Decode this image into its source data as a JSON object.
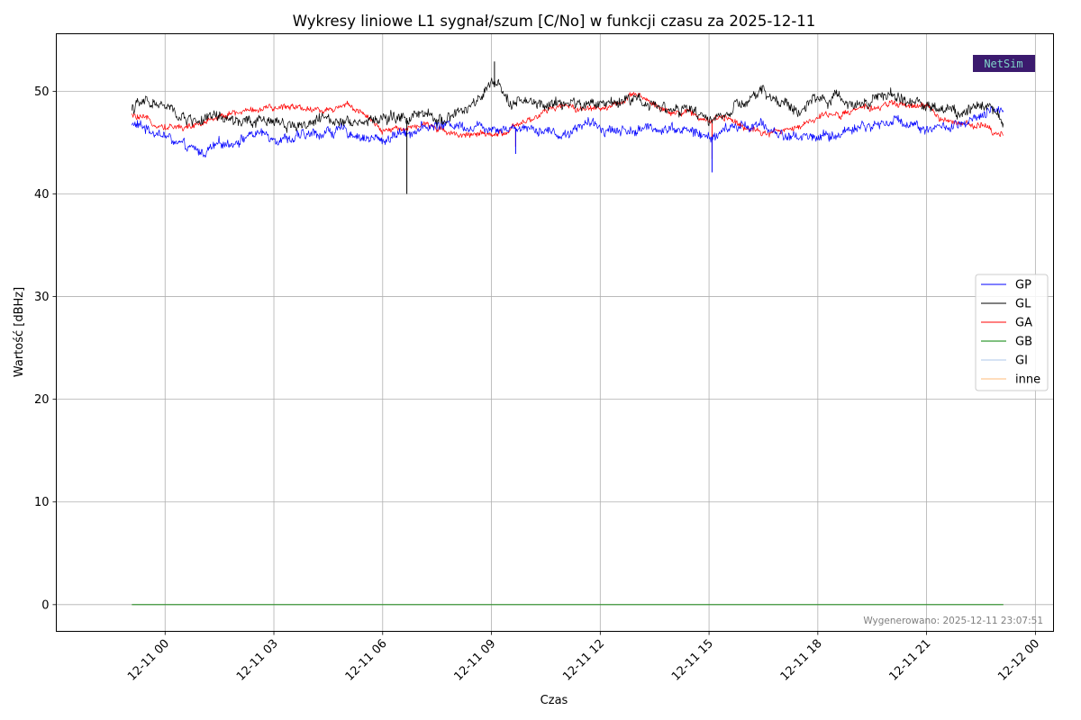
{
  "chart_data": {
    "type": "line",
    "title": "Wykresy liniowe L1 sygnał/szum [C/No] w funkcji czasu za 2025-12-11",
    "xlabel": "Czas",
    "ylabel": "Wartość [dBHz]",
    "ylim": [
      -2.6,
      55.6
    ],
    "yticks": [
      0,
      10,
      20,
      30,
      40,
      50
    ],
    "xlim": [
      "2025-12-10 21:00",
      "2025-12-12 00:30"
    ],
    "xticks": [
      {
        "t": "2025-12-11 00:00",
        "label": "12-11 00"
      },
      {
        "t": "2025-12-11 03:00",
        "label": "12-11 03"
      },
      {
        "t": "2025-12-11 06:00",
        "label": "12-11 06"
      },
      {
        "t": "2025-12-11 09:00",
        "label": "12-11 09"
      },
      {
        "t": "2025-12-11 12:00",
        "label": "12-11 12"
      },
      {
        "t": "2025-12-11 15:00",
        "label": "12-11 15"
      },
      {
        "t": "2025-12-11 18:00",
        "label": "12-11 18"
      },
      {
        "t": "2025-12-11 21:00",
        "label": "12-11 21"
      },
      {
        "t": "2025-12-12 00:00",
        "label": "12-12 00"
      }
    ],
    "x_start": "2025-12-10 23:05",
    "x_end": "2025-12-11 23:07",
    "grid": true,
    "legend_position": "right",
    "series": [
      {
        "name": "GP",
        "color": "#0000ff",
        "noise": 0.7,
        "spikes": [
          {
            "t": "2025-12-11 15:05",
            "v": 42.1
          },
          {
            "t": "2025-12-11 09:40",
            "v": 43.9
          }
        ],
        "points": [
          [
            "2025-12-10 23:05",
            46.8
          ],
          [
            "2025-12-10 23:35",
            46.3
          ],
          [
            "2025-12-11 00:05",
            45.5
          ],
          [
            "2025-12-11 00:30",
            44.5
          ],
          [
            "2025-12-11 01:00",
            44.0
          ],
          [
            "2025-12-11 01:30",
            44.7
          ],
          [
            "2025-12-11 02:00",
            45.3
          ],
          [
            "2025-12-11 02:30",
            45.9
          ],
          [
            "2025-12-11 03:00",
            45.6
          ],
          [
            "2025-12-11 03:30",
            45.4
          ],
          [
            "2025-12-11 04:00",
            45.7
          ],
          [
            "2025-12-11 04:30",
            46.1
          ],
          [
            "2025-12-11 05:00",
            46.1
          ],
          [
            "2025-12-11 05:30",
            45.5
          ],
          [
            "2025-12-11 06:00",
            45.2
          ],
          [
            "2025-12-11 06:30",
            46.0
          ],
          [
            "2025-12-11 07:00",
            46.3
          ],
          [
            "2025-12-11 07:30",
            46.7
          ],
          [
            "2025-12-11 08:00",
            46.8
          ],
          [
            "2025-12-11 08:30",
            46.6
          ],
          [
            "2025-12-11 09:00",
            46.6
          ],
          [
            "2025-12-11 09:30",
            46.4
          ],
          [
            "2025-12-11 10:00",
            46.6
          ],
          [
            "2025-12-11 10:30",
            46.2
          ],
          [
            "2025-12-11 11:00",
            45.7
          ],
          [
            "2025-12-11 11:30",
            46.9
          ],
          [
            "2025-12-11 12:00",
            46.5
          ],
          [
            "2025-12-11 12:30",
            46.2
          ],
          [
            "2025-12-11 13:00",
            46.2
          ],
          [
            "2025-12-11 13:30",
            46.4
          ],
          [
            "2025-12-11 14:00",
            46.5
          ],
          [
            "2025-12-11 14:30",
            46.1
          ],
          [
            "2025-12-11 15:00",
            45.4
          ],
          [
            "2025-12-11 15:30",
            46.3
          ],
          [
            "2025-12-11 16:00",
            46.7
          ],
          [
            "2025-12-11 16:30",
            46.6
          ],
          [
            "2025-12-11 17:00",
            45.7
          ],
          [
            "2025-12-11 17:30",
            45.6
          ],
          [
            "2025-12-11 18:00",
            45.6
          ],
          [
            "2025-12-11 18:30",
            45.6
          ],
          [
            "2025-12-11 19:00",
            46.6
          ],
          [
            "2025-12-11 19:30",
            46.6
          ],
          [
            "2025-12-11 20:00",
            47.1
          ],
          [
            "2025-12-11 20:30",
            47.0
          ],
          [
            "2025-12-11 21:00",
            46.4
          ],
          [
            "2025-12-11 21:30",
            46.5
          ],
          [
            "2025-12-11 22:00",
            46.6
          ],
          [
            "2025-12-11 22:30",
            47.4
          ],
          [
            "2025-12-11 23:07",
            48.5
          ]
        ]
      },
      {
        "name": "GL",
        "color": "#000000",
        "noise": 0.8,
        "spikes": [
          {
            "t": "2025-12-11 06:40",
            "v": 40.0
          },
          {
            "t": "2025-12-11 09:05",
            "v": 52.9
          }
        ],
        "points": [
          [
            "2025-12-10 23:05",
            48.4
          ],
          [
            "2025-12-10 23:35",
            49.0
          ],
          [
            "2025-12-11 00:05",
            48.3
          ],
          [
            "2025-12-11 00:30",
            47.3
          ],
          [
            "2025-12-11 01:00",
            47.2
          ],
          [
            "2025-12-11 01:30",
            47.3
          ],
          [
            "2025-12-11 02:00",
            47.0
          ],
          [
            "2025-12-11 02:30",
            46.8
          ],
          [
            "2025-12-11 03:00",
            47.3
          ],
          [
            "2025-12-11 03:30",
            46.7
          ],
          [
            "2025-12-11 04:00",
            46.9
          ],
          [
            "2025-12-11 04:30",
            47.3
          ],
          [
            "2025-12-11 05:00",
            47.4
          ],
          [
            "2025-12-11 05:30",
            47.0
          ],
          [
            "2025-12-11 06:00",
            47.4
          ],
          [
            "2025-12-11 06:30",
            47.3
          ],
          [
            "2025-12-11 07:00",
            47.6
          ],
          [
            "2025-12-11 07:30",
            47.2
          ],
          [
            "2025-12-11 08:00",
            47.8
          ],
          [
            "2025-12-11 08:30",
            48.5
          ],
          [
            "2025-12-11 09:00",
            50.6
          ],
          [
            "2025-12-11 09:30",
            49.3
          ],
          [
            "2025-12-11 10:00",
            48.8
          ],
          [
            "2025-12-11 10:30",
            48.5
          ],
          [
            "2025-12-11 11:00",
            48.9
          ],
          [
            "2025-12-11 11:30",
            48.6
          ],
          [
            "2025-12-11 12:00",
            48.8
          ],
          [
            "2025-12-11 12:30",
            49.1
          ],
          [
            "2025-12-11 13:00",
            49.4
          ],
          [
            "2025-12-11 13:30",
            48.7
          ],
          [
            "2025-12-11 14:00",
            48.3
          ],
          [
            "2025-12-11 14:30",
            47.9
          ],
          [
            "2025-12-11 15:00",
            47.3
          ],
          [
            "2025-12-11 15:30",
            47.8
          ],
          [
            "2025-12-11 16:00",
            48.8
          ],
          [
            "2025-12-11 16:30",
            49.9
          ],
          [
            "2025-12-11 17:00",
            48.8
          ],
          [
            "2025-12-11 17:30",
            48.1
          ],
          [
            "2025-12-11 18:00",
            49.3
          ],
          [
            "2025-12-11 18:30",
            49.2
          ],
          [
            "2025-12-11 19:00",
            48.9
          ],
          [
            "2025-12-11 19:30",
            49.4
          ],
          [
            "2025-12-11 20:00",
            49.5
          ],
          [
            "2025-12-11 20:30",
            49.1
          ],
          [
            "2025-12-11 21:00",
            48.6
          ],
          [
            "2025-12-11 21:30",
            48.2
          ],
          [
            "2025-12-11 22:00",
            48.0
          ],
          [
            "2025-12-11 22:30",
            49.2
          ],
          [
            "2025-12-11 23:07",
            47.0
          ]
        ]
      },
      {
        "name": "GA",
        "color": "#ff0000",
        "noise": 0.45,
        "spikes": [
          {
            "t": "2025-12-11 15:05",
            "v": 43.4
          },
          {
            "t": "2025-12-11 09:40",
            "v": 44.6
          }
        ],
        "points": [
          [
            "2025-12-10 23:05",
            47.6
          ],
          [
            "2025-12-10 23:35",
            47.0
          ],
          [
            "2025-12-11 00:05",
            46.6
          ],
          [
            "2025-12-11 00:30",
            46.5
          ],
          [
            "2025-12-11 01:00",
            46.7
          ],
          [
            "2025-12-11 01:30",
            47.7
          ],
          [
            "2025-12-11 02:00",
            47.9
          ],
          [
            "2025-12-11 02:30",
            48.3
          ],
          [
            "2025-12-11 03:00",
            48.2
          ],
          [
            "2025-12-11 03:30",
            48.7
          ],
          [
            "2025-12-11 04:00",
            48.3
          ],
          [
            "2025-12-11 04:30",
            48.1
          ],
          [
            "2025-12-11 05:00",
            48.9
          ],
          [
            "2025-12-11 05:30",
            47.6
          ],
          [
            "2025-12-11 06:00",
            46.0
          ],
          [
            "2025-12-11 06:30",
            46.5
          ],
          [
            "2025-12-11 07:00",
            46.7
          ],
          [
            "2025-12-11 07:30",
            46.5
          ],
          [
            "2025-12-11 08:00",
            45.9
          ],
          [
            "2025-12-11 08:30",
            45.8
          ],
          [
            "2025-12-11 09:00",
            45.6
          ],
          [
            "2025-12-11 09:30",
            46.2
          ],
          [
            "2025-12-11 10:00",
            47.0
          ],
          [
            "2025-12-11 10:30",
            48.0
          ],
          [
            "2025-12-11 11:00",
            48.6
          ],
          [
            "2025-12-11 11:30",
            48.3
          ],
          [
            "2025-12-11 12:00",
            48.4
          ],
          [
            "2025-12-11 12:30",
            48.8
          ],
          [
            "2025-12-11 13:00",
            49.6
          ],
          [
            "2025-12-11 13:30",
            48.7
          ],
          [
            "2025-12-11 14:00",
            48.0
          ],
          [
            "2025-12-11 14:30",
            47.9
          ],
          [
            "2025-12-11 15:00",
            47.0
          ],
          [
            "2025-12-11 15:30",
            47.5
          ],
          [
            "2025-12-11 16:00",
            46.6
          ],
          [
            "2025-12-11 16:30",
            46.1
          ],
          [
            "2025-12-11 17:00",
            46.0
          ],
          [
            "2025-12-11 17:30",
            46.6
          ],
          [
            "2025-12-11 18:00",
            47.5
          ],
          [
            "2025-12-11 18:30",
            47.8
          ],
          [
            "2025-12-11 19:00",
            48.0
          ],
          [
            "2025-12-11 19:30",
            48.4
          ],
          [
            "2025-12-11 20:00",
            48.7
          ],
          [
            "2025-12-11 20:30",
            48.6
          ],
          [
            "2025-12-11 21:00",
            48.5
          ],
          [
            "2025-12-11 21:30",
            47.2
          ],
          [
            "2025-12-11 22:00",
            46.6
          ],
          [
            "2025-12-11 22:30",
            46.8
          ],
          [
            "2025-12-11 23:07",
            45.8
          ]
        ]
      },
      {
        "name": "GB",
        "color": "#008000",
        "noise": 0,
        "spikes": [],
        "points": [
          [
            "2025-12-10 23:05",
            0
          ],
          [
            "2025-12-11 23:07",
            0
          ]
        ]
      },
      {
        "name": "GI",
        "color": "#aec7e8",
        "noise": 0,
        "spikes": [],
        "points": [
          [
            "2025-12-10 23:05",
            0
          ],
          [
            "2025-12-11 23:07",
            0
          ]
        ]
      },
      {
        "name": "inne",
        "color": "#ffbb78",
        "noise": 0,
        "spikes": [],
        "points": [
          [
            "2025-12-10 23:05",
            0
          ],
          [
            "2025-12-11 23:07",
            0
          ]
        ]
      }
    ],
    "footer_note": "Wygenerowano: 2025-12-11 23:07:51",
    "logo_text": "NetSim"
  }
}
